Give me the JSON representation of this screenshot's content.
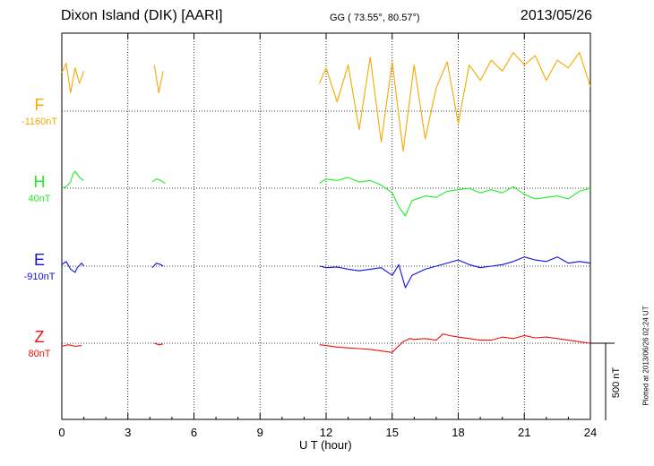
{
  "header": {
    "title": "Dixon Island (DIK)  [AARI]",
    "coords": "GG ( 73.55°,  80.57°)",
    "date": "2013/05/26"
  },
  "footer": {
    "plotted": "Plotted at 2013/06/26 02:24 UT"
  },
  "chart_data": {
    "type": "line",
    "title": "Dixon Island (DIK)  [AARI]",
    "xlabel": "U T (hour)",
    "ylabel": "",
    "xlim": [
      0,
      24
    ],
    "xticks": [
      0,
      3,
      6,
      9,
      12,
      15,
      18,
      21,
      24
    ],
    "grid": true,
    "scale_bar": {
      "value": 500,
      "unit": "nT",
      "label": "500 nT"
    },
    "channels": [
      {
        "letter": "F",
        "baseline_label": "-1160nT",
        "color": "#f5a800"
      },
      {
        "letter": "H",
        "baseline_label": "40nT",
        "color": "#22ee22"
      },
      {
        "letter": "E",
        "baseline_label": "-910nT",
        "color": "#1010dd"
      },
      {
        "letter": "Z",
        "baseline_label": "80nT",
        "color": "#ee1111"
      }
    ],
    "series": [
      {
        "channel": "F",
        "x": [
          0.0,
          0.2,
          0.4,
          0.6,
          0.8,
          1.0,
          4.2,
          4.4,
          4.6,
          11.7,
          12.0,
          12.5,
          13.0,
          13.5,
          14.0,
          14.5,
          15.0,
          15.5,
          16.0,
          16.5,
          17.0,
          17.5,
          18.0,
          18.5,
          19.0,
          19.5,
          20.0,
          20.5,
          21.0,
          21.5,
          22.0,
          22.5,
          23.0,
          23.5,
          24.0
        ],
        "y": [
          250,
          310,
          120,
          280,
          180,
          260,
          300,
          120,
          260,
          180,
          280,
          60,
          300,
          -120,
          350,
          -200,
          320,
          -260,
          300,
          -180,
          150,
          320,
          -80,
          300,
          200,
          330,
          260,
          380,
          300,
          360,
          200,
          330,
          280,
          380,
          160
        ],
        "gaps_after_index": [
          5,
          8
        ]
      },
      {
        "channel": "H",
        "x": [
          0.0,
          0.2,
          0.4,
          0.5,
          0.6,
          0.8,
          1.0,
          4.1,
          4.3,
          4.5,
          4.7,
          11.7,
          12.0,
          12.5,
          13.0,
          13.5,
          14.0,
          14.5,
          15.0,
          15.3,
          15.6,
          15.9,
          16.5,
          17.0,
          17.5,
          18.0,
          18.5,
          19.0,
          19.5,
          20.0,
          20.5,
          21.0,
          21.5,
          22.0,
          22.5,
          23.0,
          23.5,
          24.0
        ],
        "y": [
          0,
          10,
          40,
          90,
          110,
          70,
          50,
          40,
          60,
          50,
          30,
          30,
          60,
          50,
          70,
          40,
          50,
          20,
          -30,
          -120,
          -180,
          -80,
          -50,
          -60,
          -20,
          -10,
          0,
          -30,
          -10,
          -30,
          10,
          -40,
          -70,
          -60,
          -50,
          -70,
          -20,
          0
        ]
      },
      {
        "channel": "E",
        "x": [
          0.0,
          0.2,
          0.4,
          0.6,
          0.7,
          0.9,
          1.0,
          4.1,
          4.3,
          4.5,
          4.6,
          11.7,
          12.0,
          12.5,
          13.0,
          13.5,
          14.0,
          14.5,
          15.0,
          15.3,
          15.6,
          15.9,
          16.5,
          17.0,
          17.5,
          18.0,
          18.5,
          19.0,
          19.5,
          20.0,
          20.5,
          21.0,
          21.5,
          22.0,
          22.5,
          23.0,
          23.5,
          24.0
        ],
        "y": [
          10,
          30,
          -20,
          -40,
          -10,
          20,
          0,
          -10,
          20,
          10,
          0,
          0,
          -10,
          -5,
          -20,
          -30,
          -20,
          -10,
          -60,
          10,
          -140,
          -60,
          -20,
          0,
          20,
          40,
          10,
          -10,
          0,
          10,
          30,
          60,
          40,
          30,
          60,
          20,
          30,
          20
        ]
      },
      {
        "channel": "Z",
        "x": [
          0.0,
          0.3,
          0.6,
          0.9,
          4.2,
          4.4,
          4.6,
          11.7,
          12.0,
          12.5,
          13.0,
          13.5,
          14.0,
          14.5,
          15.0,
          15.2,
          15.5,
          15.8,
          16.0,
          16.5,
          17.0,
          17.3,
          17.6,
          18.0,
          18.5,
          19.0,
          19.5,
          20.0,
          20.5,
          21.0,
          21.5,
          22.0,
          22.5,
          23.0,
          23.5,
          24.0
        ],
        "y": [
          -20,
          -10,
          -20,
          -15,
          0,
          -10,
          -5,
          -10,
          -15,
          -25,
          -30,
          -35,
          -40,
          -50,
          -60,
          -30,
          10,
          30,
          25,
          30,
          20,
          60,
          50,
          40,
          30,
          20,
          20,
          40,
          30,
          50,
          35,
          40,
          30,
          20,
          10,
          0
        ]
      }
    ]
  }
}
